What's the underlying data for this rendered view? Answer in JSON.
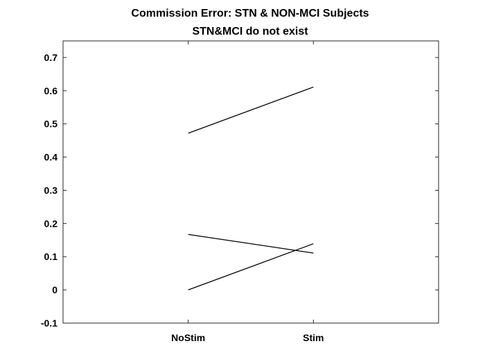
{
  "chart_data": {
    "type": "line",
    "title": "Commission Error: STN & NON-MCI Subjects",
    "subtitle": "STN&MCI do not exist",
    "xlabel": "",
    "ylabel": "",
    "categories": [
      "NoStim",
      "Stim"
    ],
    "xlim": [
      0,
      3
    ],
    "ylim": [
      -0.1,
      0.75
    ],
    "yticks": [
      -0.1,
      0,
      0.1,
      0.2,
      0.3,
      0.4,
      0.5,
      0.6,
      0.7
    ],
    "ytick_labels": [
      "-0.1",
      "0",
      "0.1",
      "0.2",
      "0.3",
      "0.4",
      "0.5",
      "0.6",
      "0.7"
    ],
    "grid": false,
    "line_color": "#000000",
    "series": [
      {
        "values": [
          0.472,
          0.611
        ]
      },
      {
        "values": [
          0.167,
          0.111
        ]
      },
      {
        "values": [
          0.0,
          0.139
        ]
      }
    ]
  }
}
